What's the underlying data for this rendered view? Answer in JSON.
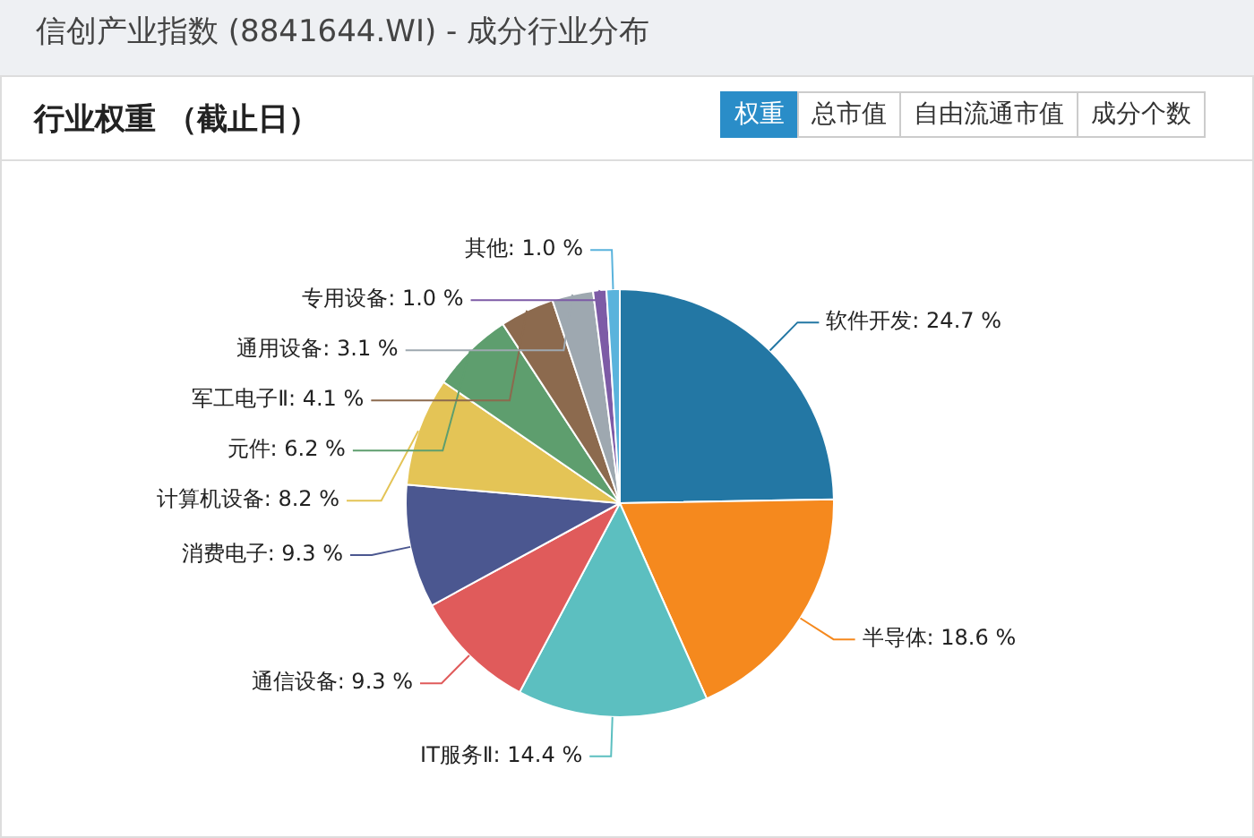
{
  "chart_data": {
    "type": "pie",
    "title": "信创产业指数 (8841644.WI) - 成分行业分布",
    "subtitle": "行业权重 （截止日）",
    "annotations": [
      "权重",
      "总市值",
      "自由流通市值",
      "成分个数"
    ],
    "categories": [
      "软件开发",
      "半导体",
      "IT服务Ⅱ",
      "通信设备",
      "消费电子",
      "计算机设备",
      "元件",
      "军工电子Ⅱ",
      "通用设备",
      "专用设备",
      "其他"
    ],
    "values": [
      24.7,
      18.6,
      14.4,
      9.3,
      9.3,
      8.2,
      6.2,
      4.1,
      3.1,
      1.0,
      1.0
    ],
    "value_labels": [
      "24.7 %",
      "18.6 %",
      "14.4 %",
      "9.3 %",
      "9.3 %",
      "8.2 %",
      "6.2 %",
      "4.1 %",
      "3.1 %",
      "1.0 %",
      "1.0 %"
    ],
    "colors": [
      "#2377a4",
      "#f5891e",
      "#5cbfc0",
      "#e05b5b",
      "#4b5790",
      "#e4c456",
      "#5e9e6e",
      "#8c6a4e",
      "#9ea8b0",
      "#7d5ba6",
      "#5ab3dc"
    ],
    "legend": false
  }
}
